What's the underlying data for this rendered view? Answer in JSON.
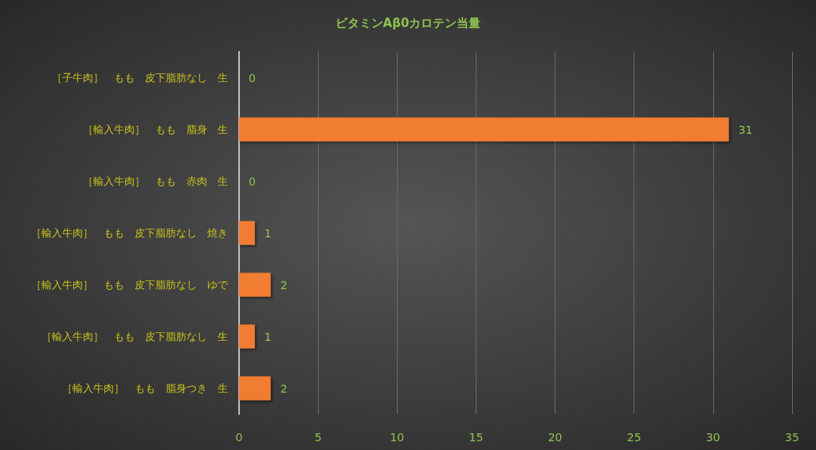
{
  "chart_data": {
    "type": "bar",
    "orientation": "horizontal",
    "title": "ビタミンAβ0カロテン当量",
    "categories": [
      "［子牛肉］　もも　皮下脂肪なし　生",
      "［輸入牛肉］　もも　脂身　生",
      "［輸入牛肉］　もも　赤肉　生",
      "［輸入牛肉］　もも　皮下脂肪なし　焼き",
      "［輸入牛肉］　もも　皮下脂肪なし　ゆで",
      "［輸入牛肉］　もも　皮下脂肪なし　生",
      "［輸入牛肉］　もも　脂身つき　生"
    ],
    "values": [
      0,
      31,
      0,
      1,
      2,
      1,
      2
    ],
    "color": "#f07d30",
    "xlim": [
      0,
      35
    ],
    "xticks": [
      0,
      5,
      10,
      15,
      20,
      25,
      30,
      35
    ],
    "grid": "x",
    "data_labels": true
  }
}
